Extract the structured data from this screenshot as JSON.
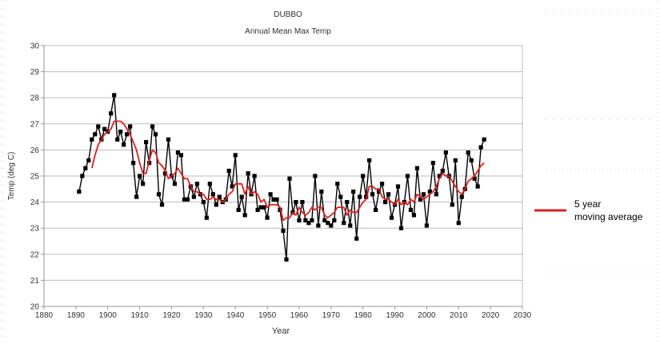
{
  "chart_data": {
    "type": "line",
    "title": "DUBBO",
    "subtitle": "Annual Mean Max Temp",
    "xlabel": "Year",
    "ylabel": "Temp (deg C)",
    "xlim": [
      1880,
      2030
    ],
    "ylim": [
      20,
      30
    ],
    "x_ticks": [
      1880,
      1890,
      1900,
      1910,
      1920,
      1930,
      1940,
      1950,
      1960,
      1970,
      1980,
      1990,
      2000,
      2010,
      2020,
      2030
    ],
    "y_ticks": [
      20,
      21,
      22,
      23,
      24,
      25,
      26,
      27,
      28,
      29,
      30
    ],
    "grid": "horizontal",
    "legend": {
      "position": "right",
      "entries": [
        "5 year moving average"
      ]
    },
    "series": [
      {
        "kind": "annual",
        "color": "#000000",
        "marker": "square",
        "x": [
          1891,
          1892,
          1893,
          1894,
          1895,
          1896,
          1897,
          1898,
          1899,
          1900,
          1901,
          1902,
          1903,
          1904,
          1905,
          1906,
          1907,
          1908,
          1909,
          1910,
          1911,
          1912,
          1913,
          1914,
          1915,
          1916,
          1917,
          1918,
          1919,
          1920,
          1921,
          1922,
          1923,
          1924,
          1925,
          1926,
          1927,
          1928,
          1929,
          1930,
          1931,
          1932,
          1933,
          1934,
          1935,
          1936,
          1937,
          1938,
          1939,
          1940,
          1941,
          1942,
          1943,
          1944,
          1945,
          1946,
          1947,
          1948,
          1949,
          1950,
          1951,
          1952,
          1953,
          1954,
          1955,
          1956,
          1957,
          1958,
          1959,
          1960,
          1961,
          1962,
          1963,
          1964,
          1965,
          1966,
          1967,
          1968,
          1969,
          1970,
          1971,
          1972,
          1973,
          1974,
          1975,
          1976,
          1977,
          1978,
          1979,
          1980,
          1981,
          1982,
          1983,
          1984,
          1985,
          1986,
          1987,
          1988,
          1989,
          1990,
          1991,
          1992,
          1993,
          1994,
          1995,
          1996,
          1997,
          1998,
          1999,
          2000,
          2001,
          2002,
          2003,
          2004,
          2005,
          2006,
          2007,
          2008,
          2009,
          2010,
          2011,
          2012,
          2013,
          2014,
          2015,
          2016,
          2017,
          2018
        ],
        "values": [
          24.4,
          25.0,
          25.3,
          25.6,
          26.4,
          26.6,
          26.9,
          26.4,
          26.8,
          26.7,
          27.4,
          28.1,
          26.4,
          26.7,
          26.2,
          26.6,
          26.9,
          25.5,
          24.2,
          25.0,
          24.7,
          26.3,
          25.5,
          26.9,
          26.6,
          24.3,
          23.9,
          25.1,
          26.4,
          25.0,
          24.7,
          25.9,
          25.8,
          24.1,
          24.1,
          24.6,
          24.2,
          24.7,
          24.3,
          24.0,
          23.4,
          24.7,
          24.3,
          23.9,
          24.2,
          24.0,
          24.1,
          25.2,
          24.6,
          25.8,
          23.7,
          24.2,
          23.5,
          25.1,
          24.3,
          25.0,
          23.7,
          23.8,
          23.8,
          23.4,
          24.3,
          24.1,
          24.1,
          23.7,
          22.9,
          21.8,
          24.9,
          23.6,
          24.0,
          23.3,
          24.0,
          23.3,
          23.2,
          23.3,
          25.0,
          23.1,
          24.4,
          23.3,
          23.2,
          23.1,
          23.3,
          24.7,
          24.2,
          23.2,
          24.0,
          23.1,
          24.4,
          22.6,
          24.2,
          25.0,
          24.2,
          25.6,
          24.3,
          23.7,
          24.4,
          24.7,
          24.0,
          24.3,
          23.4,
          23.9,
          24.6,
          23.0,
          24.0,
          25.0,
          23.7,
          23.5,
          25.3,
          24.1,
          24.3,
          23.1,
          24.4,
          25.5,
          24.3,
          25.0,
          25.2,
          25.9,
          25.0,
          23.9,
          25.6,
          23.2,
          24.2,
          24.5,
          25.9,
          25.6,
          24.9,
          24.6,
          26.1,
          26.4
        ]
      },
      {
        "name": "5 year moving average",
        "kind": "moving_average",
        "color": "#e02020",
        "x": [
          1895,
          1896,
          1897,
          1898,
          1899,
          1900,
          1901,
          1902,
          1903,
          1904,
          1905,
          1906,
          1907,
          1908,
          1909,
          1910,
          1911,
          1912,
          1913,
          1914,
          1915,
          1916,
          1917,
          1918,
          1919,
          1920,
          1921,
          1922,
          1923,
          1924,
          1925,
          1926,
          1927,
          1928,
          1929,
          1930,
          1931,
          1932,
          1933,
          1934,
          1935,
          1936,
          1937,
          1938,
          1939,
          1940,
          1941,
          1942,
          1943,
          1944,
          1945,
          1946,
          1947,
          1948,
          1949,
          1950,
          1951,
          1952,
          1953,
          1954,
          1955,
          1956,
          1957,
          1958,
          1959,
          1960,
          1961,
          1962,
          1963,
          1964,
          1965,
          1966,
          1967,
          1968,
          1969,
          1970,
          1971,
          1972,
          1973,
          1974,
          1975,
          1976,
          1977,
          1978,
          1979,
          1980,
          1981,
          1982,
          1983,
          1984,
          1985,
          1986,
          1987,
          1988,
          1989,
          1990,
          1991,
          1992,
          1993,
          1994,
          1995,
          1996,
          1997,
          1998,
          1999,
          2000,
          2001,
          2002,
          2003,
          2004,
          2005,
          2006,
          2007,
          2008,
          2009,
          2010,
          2011,
          2012,
          2013,
          2014,
          2015,
          2016,
          2017,
          2018
        ],
        "values": [
          25.3,
          25.8,
          26.2,
          26.4,
          26.6,
          26.7,
          26.8,
          27.1,
          27.1,
          27.1,
          27.0,
          26.8,
          26.6,
          26.3,
          26.0,
          25.5,
          25.1,
          25.1,
          25.6,
          26.0,
          25.9,
          25.5,
          25.4,
          25.2,
          24.9,
          25.0,
          25.1,
          25.3,
          25.1,
          24.9,
          24.9,
          24.6,
          24.4,
          24.4,
          24.3,
          24.3,
          24.1,
          24.1,
          24.2,
          24.1,
          24.1,
          24.0,
          24.1,
          24.3,
          24.4,
          24.7,
          24.7,
          24.7,
          24.3,
          24.6,
          24.3,
          24.4,
          24.3,
          24.0,
          24.1,
          23.8,
          23.9,
          23.9,
          23.9,
          23.8,
          23.3,
          23.4,
          23.4,
          23.6,
          23.5,
          23.8,
          23.6,
          23.5,
          23.6,
          23.8,
          23.7,
          23.8,
          23.8,
          23.5,
          23.4,
          23.5,
          23.6,
          23.8,
          23.8,
          23.8,
          23.5,
          23.7,
          23.6,
          23.6,
          23.8,
          24.0,
          24.1,
          24.6,
          24.6,
          24.5,
          24.5,
          24.2,
          24.1,
          24.1,
          24.0,
          23.9,
          24.1,
          23.9,
          24.0,
          23.9,
          24.1,
          24.0,
          24.3,
          24.2,
          24.1,
          24.2,
          24.3,
          24.4,
          24.6,
          24.9,
          25.1,
          25.0,
          25.0,
          24.8,
          24.6,
          24.4,
          24.3,
          24.5,
          24.8,
          24.9,
          25.0,
          25.2,
          25.4,
          25.5
        ]
      }
    ]
  }
}
